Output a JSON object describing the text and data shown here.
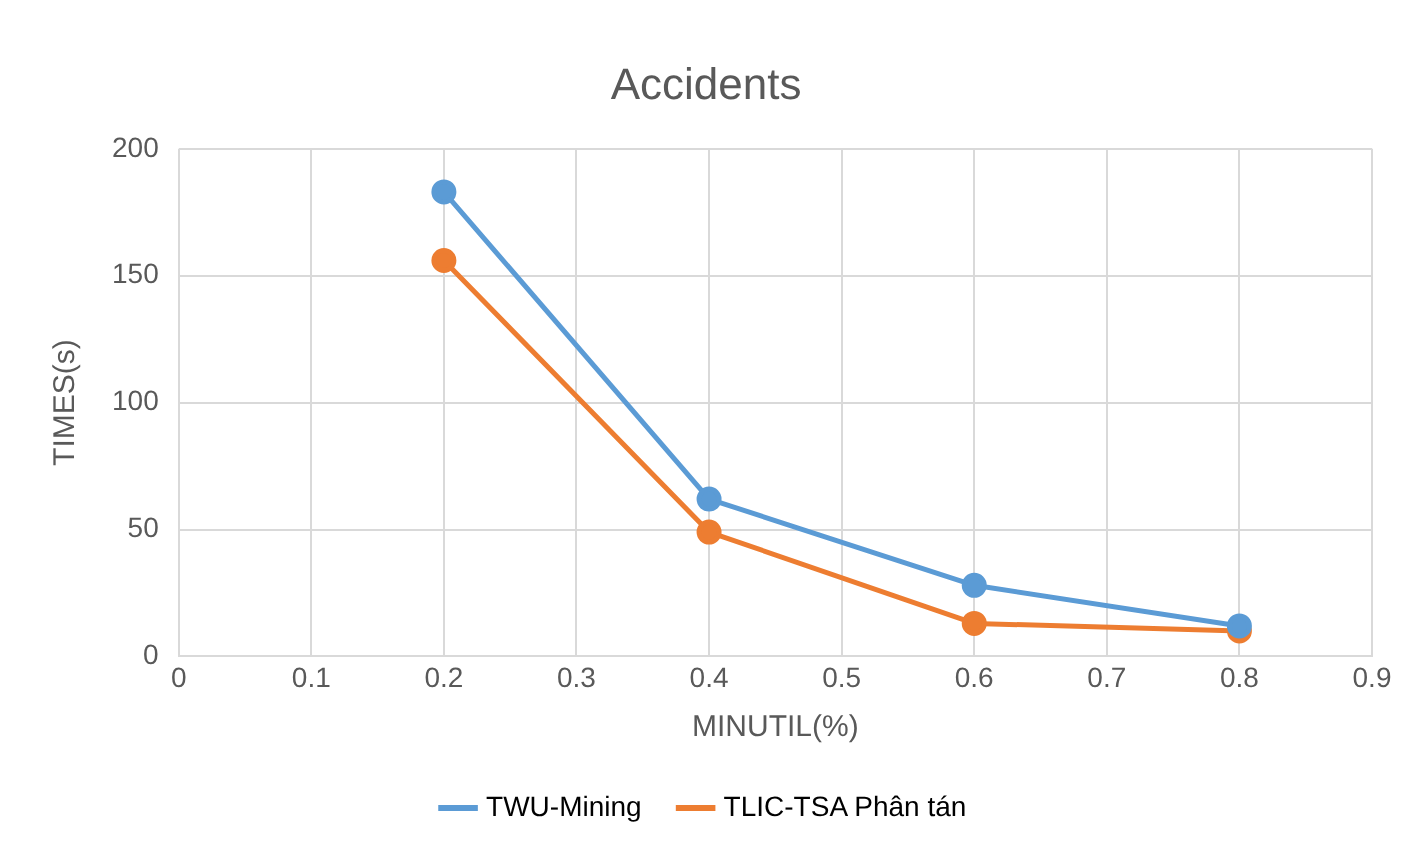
{
  "chart_data": {
    "type": "line",
    "title": "Accidents",
    "xlabel": "MINUTIL(%)",
    "ylabel": "TIMES(s)",
    "x": [
      0.2,
      0.4,
      0.6,
      0.8
    ],
    "series": [
      {
        "name": "TWU-Mining",
        "color": "#5b9bd5",
        "values": [
          183,
          62,
          28,
          12
        ]
      },
      {
        "name": "TLIC-TSA Phân tán",
        "color": "#ed7d31",
        "values": [
          156,
          49,
          13,
          10
        ]
      }
    ],
    "xlim": [
      0,
      0.9
    ],
    "xticks": [
      0,
      0.1,
      0.2,
      0.3,
      0.4,
      0.5,
      0.6,
      0.7,
      0.8,
      0.9
    ],
    "ylim": [
      0,
      200
    ],
    "yticks": [
      0,
      50,
      100,
      150,
      200
    ],
    "grid": true,
    "legend": "bottom",
    "marker": "circle",
    "line_style": "solid"
  }
}
